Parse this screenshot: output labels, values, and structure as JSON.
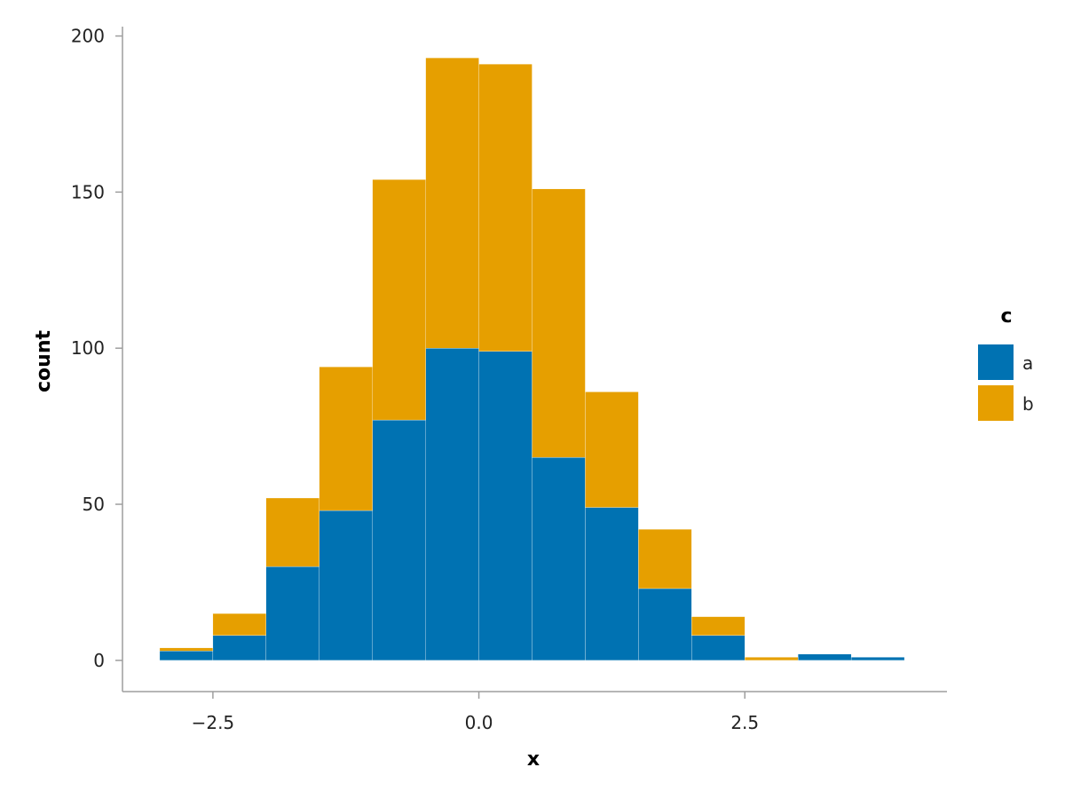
{
  "chart_data": {
    "type": "bar",
    "stacked": true,
    "title": "",
    "xlabel": "x",
    "ylabel": "count",
    "bins": [
      [
        -3.0,
        -2.5
      ],
      [
        -2.5,
        -2.0
      ],
      [
        -2.0,
        -1.5
      ],
      [
        -1.5,
        -1.0
      ],
      [
        -1.0,
        -0.5
      ],
      [
        -0.5,
        0.0
      ],
      [
        0.0,
        0.5
      ],
      [
        0.5,
        1.0
      ],
      [
        1.0,
        1.5
      ],
      [
        1.5,
        2.0
      ],
      [
        2.0,
        2.5
      ],
      [
        2.5,
        3.0
      ],
      [
        3.0,
        3.5
      ],
      [
        3.5,
        4.0
      ]
    ],
    "series": [
      {
        "name": "a",
        "color": "#0072b2",
        "values": [
          3,
          8,
          30,
          48,
          77,
          100,
          99,
          65,
          49,
          23,
          8,
          0,
          2,
          1
        ]
      },
      {
        "name": "b",
        "color": "#e69f00",
        "values": [
          1,
          7,
          22,
          46,
          77,
          93,
          92,
          86,
          37,
          19,
          6,
          1,
          0,
          0
        ]
      }
    ],
    "xlim": [
      -3.35,
      4.4
    ],
    "ylim": [
      -10,
      203
    ],
    "x_ticks": [
      {
        "value": -2.5,
        "label": "−2.5"
      },
      {
        "value": 0.0,
        "label": "0.0"
      },
      {
        "value": 2.5,
        "label": "2.5"
      }
    ],
    "y_ticks": [
      {
        "value": 0,
        "label": "0"
      },
      {
        "value": 50,
        "label": "50"
      },
      {
        "value": 100,
        "label": "100"
      },
      {
        "value": 150,
        "label": "150"
      },
      {
        "value": 200,
        "label": "200"
      }
    ],
    "grid": false,
    "legend": {
      "title": "c",
      "position": "right",
      "entries": [
        {
          "label": "a",
          "color": "#0072b2"
        },
        {
          "label": "b",
          "color": "#e69f00"
        }
      ]
    }
  }
}
